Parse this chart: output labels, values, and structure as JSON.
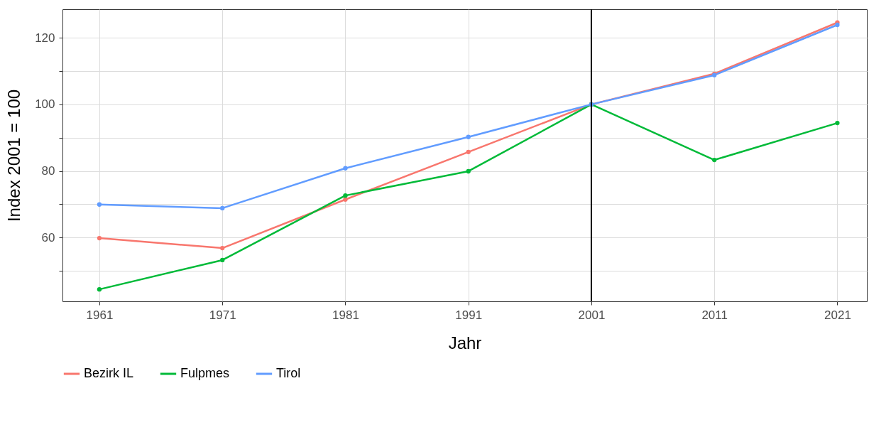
{
  "chart_data": {
    "type": "line",
    "xlabel": "Jahr",
    "ylabel": "Index 2001 = 100",
    "x": [
      1961,
      1971,
      1981,
      1991,
      2001,
      2011,
      2021
    ],
    "series": [
      {
        "name": "Bezirk IL",
        "color": "#f8766d",
        "values": [
          59.8,
          56.8,
          71.4,
          85.7,
          100,
          109.2,
          124.6
        ]
      },
      {
        "name": "Fulpmes",
        "color": "#00ba38",
        "values": [
          44.4,
          53.2,
          72.6,
          79.9,
          100,
          83.3,
          94.4
        ]
      },
      {
        "name": "Tirol",
        "color": "#619cff",
        "values": [
          69.9,
          68.8,
          80.8,
          90.2,
          100,
          108.8,
          123.9
        ]
      }
    ],
    "xlim": [
      1958,
      2023.4
    ],
    "xticks": [
      1961,
      1971,
      1981,
      1991,
      2001,
      2011,
      2021
    ],
    "ylim": [
      40.8,
      128.6
    ],
    "yticks": [
      {
        "value": 50,
        "label": null
      },
      60,
      {
        "value": 70,
        "label": null
      },
      80,
      {
        "value": 90,
        "label": null
      },
      100,
      {
        "value": 110,
        "label": null
      },
      120
    ],
    "ref_lines": [
      {
        "axis": "x",
        "value": 2001,
        "color": "#000000"
      }
    ],
    "grid": true,
    "legend": "bottom",
    "marker": "circle",
    "line_style": "solid"
  }
}
